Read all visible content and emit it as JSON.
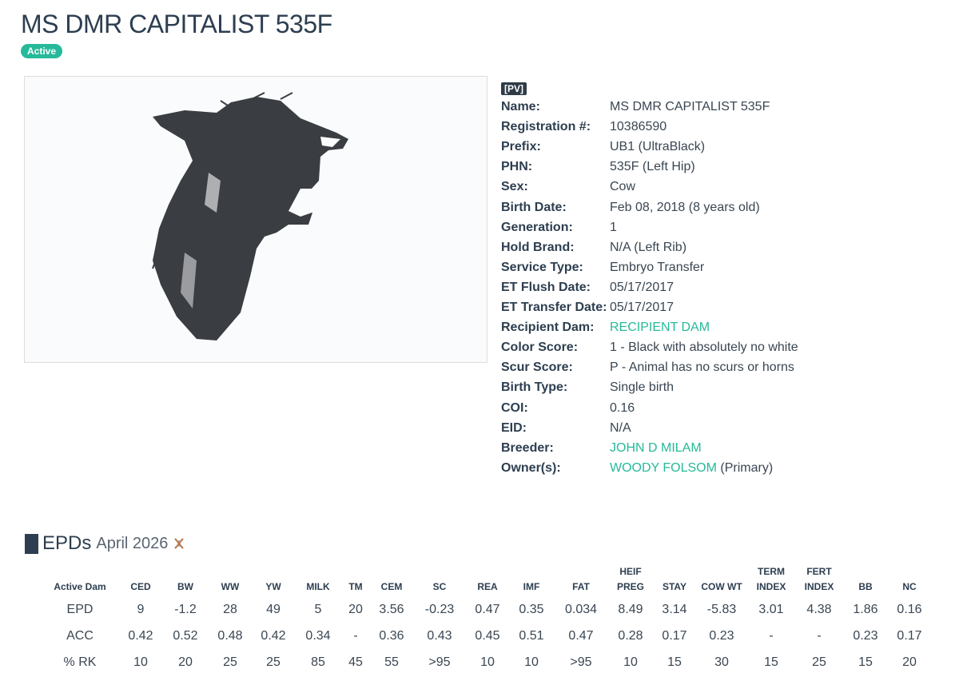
{
  "header": {
    "title": "MS DMR CAPITALIST 535F",
    "status": "Active"
  },
  "details": {
    "badge": "[PV]",
    "rows": [
      {
        "label": "Name:",
        "value": "MS DMR CAPITALIST 535F"
      },
      {
        "label": "Registration #:",
        "value": "10386590"
      },
      {
        "label": "Prefix:",
        "value": "UB1 (UltraBlack)"
      },
      {
        "label": "PHN:",
        "value": "535F (Left Hip)"
      },
      {
        "label": "Sex:",
        "value": "Cow"
      },
      {
        "label": "Birth Date:",
        "value": "Feb 08, 2018 (8 years old)"
      },
      {
        "label": "Generation:",
        "value": "1"
      },
      {
        "label": "Hold Brand:",
        "value": "N/A (Left Rib)"
      },
      {
        "label": "Service Type:",
        "value": "Embryo Transfer"
      },
      {
        "label": "ET Flush Date:",
        "value": "05/17/2017"
      },
      {
        "label": "ET Transfer Date:",
        "value": "05/17/2017"
      },
      {
        "label": "Recipient Dam:",
        "value": "RECIPIENT DAM",
        "link": true
      },
      {
        "label": "Color Score:",
        "value": "1 - Black with absolutely no white"
      },
      {
        "label": "Scur Score:",
        "value": "P - Animal has no scurs or horns"
      },
      {
        "label": "Birth Type:",
        "value": "Single birth"
      },
      {
        "label": "COI:",
        "value": "0.16"
      },
      {
        "label": "EID:",
        "value": "N/A"
      },
      {
        "label": "Breeder:",
        "value": "JOHN D MILAM",
        "link": true
      },
      {
        "label": "Owner(s):",
        "value": "WOODY FOLSOM",
        "link": true,
        "note": "(Primary)"
      }
    ]
  },
  "epds": {
    "title": "EPDs",
    "date": "April 2026",
    "columns": [
      "Active Dam",
      "CED",
      "BW",
      "WW",
      "YW",
      "MILK",
      "TM",
      "CEM",
      "SC",
      "REA",
      "IMF",
      "FAT",
      "HEIF PREG",
      "STAY",
      "COW WT",
      "TERM INDEX",
      "FERT INDEX",
      "BB",
      "NC"
    ],
    "rows": [
      {
        "label": "EPD",
        "values": [
          "9",
          "-1.2",
          "28",
          "49",
          "5",
          "20",
          "3.56",
          "-0.23",
          "0.47",
          "0.35",
          "0.034",
          "8.49",
          "3.14",
          "-5.83",
          "3.01",
          "4.38",
          "1.86",
          "0.16"
        ]
      },
      {
        "label": "ACC",
        "values": [
          "0.42",
          "0.52",
          "0.48",
          "0.42",
          "0.34",
          "-",
          "0.36",
          "0.43",
          "0.45",
          "0.51",
          "0.47",
          "0.28",
          "0.17",
          "0.23",
          "-",
          "-",
          "0.23",
          "0.17"
        ]
      },
      {
        "label": "% RK",
        "values": [
          "10",
          "20",
          "25",
          "25",
          "85",
          "45",
          "55",
          ">95",
          "10",
          "10",
          ">95",
          "10",
          "15",
          "30",
          "15",
          "25",
          "15",
          "20"
        ]
      }
    ]
  }
}
